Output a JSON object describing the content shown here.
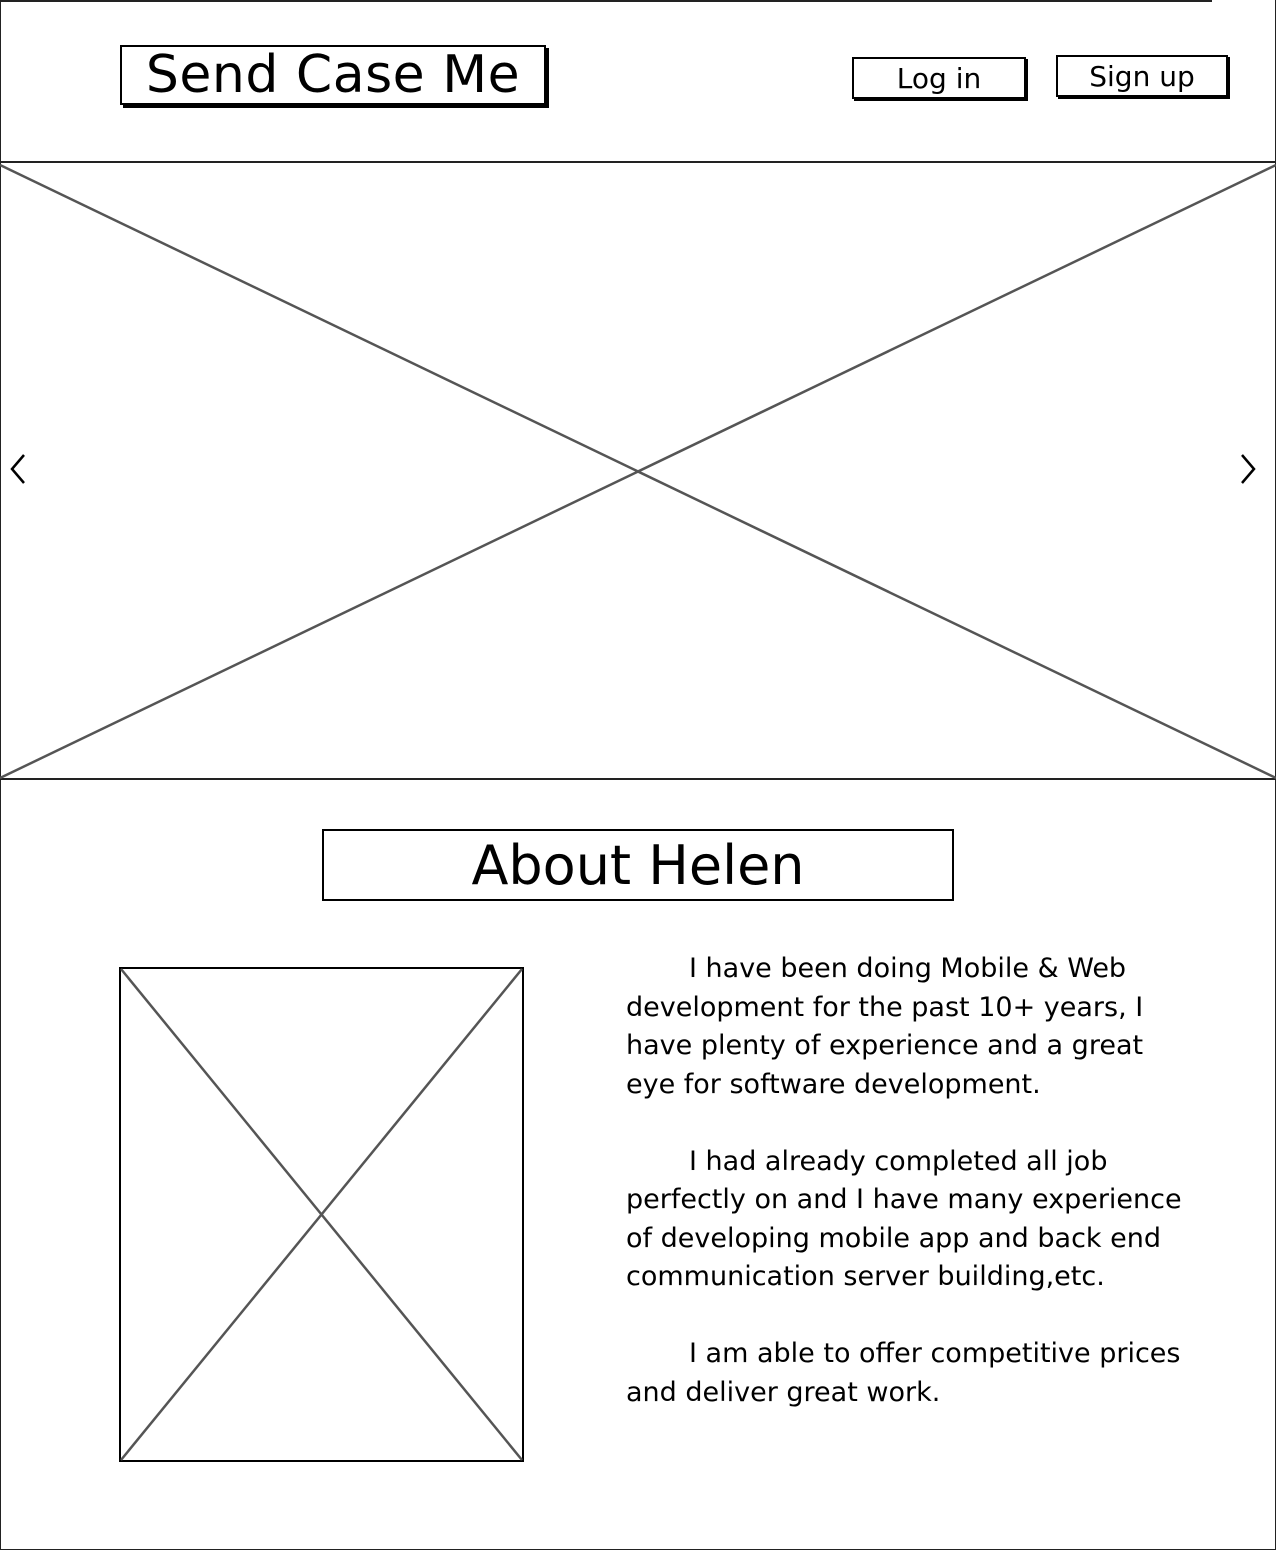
{
  "header": {
    "logo_text": "Send Case Me",
    "login_label": "Log in",
    "signup_label": "Sign up"
  },
  "hero": {
    "prev_icon": "chevron-left-icon",
    "next_icon": "chevron-right-icon"
  },
  "about": {
    "title": "About Helen",
    "paragraphs": [
      "I have been doing Mobile & Web development for the past 10+ years, I have plenty of experience and a great eye for software development.",
      "I had already completed all job perfectly on  and I have many experience of developing mobile app and back end communication server building,etc.",
      "I am able to offer competitive prices and deliver great work."
    ]
  }
}
